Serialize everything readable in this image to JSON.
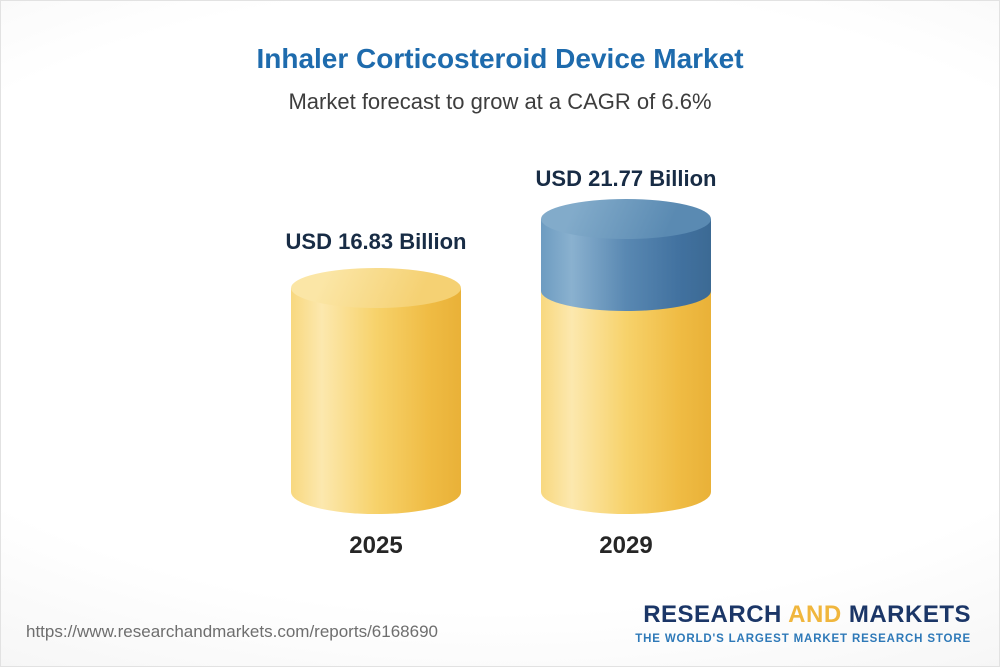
{
  "header": {
    "title": "Inhaler Corticosteroid Device Market",
    "subtitle": "Market forecast to grow at a CAGR of 6.6%"
  },
  "chart_data": {
    "type": "bar",
    "title": "Inhaler Corticosteroid Device Market",
    "subtitle": "Market forecast to grow at a CAGR of 6.6%",
    "unit": "USD Billion",
    "cagr": "6.6%",
    "categories": [
      "2025",
      "2029"
    ],
    "values": [
      16.83,
      21.77
    ],
    "bars": [
      {
        "year": "2025",
        "value": 16.83,
        "label": "USD 16.83 Billion",
        "color": "#f6c64e"
      },
      {
        "year": "2029",
        "value": 21.77,
        "label": "USD 21.77 Billion",
        "color": "#f6c64e",
        "growth_color": "#4d80ac"
      }
    ],
    "legend": false,
    "grid": false,
    "ylim": [
      0,
      21.77
    ]
  },
  "footer": {
    "url": "https://www.researchandmarkets.com/reports/6168690",
    "logo": {
      "word1": "RESEARCH",
      "word2": "AND",
      "word3": "MARKETS",
      "tagline": "THE WORLD'S LARGEST MARKET RESEARCH STORE"
    }
  },
  "colors": {
    "title_blue": "#1e6bad",
    "bar_yellow": "#f6c64e",
    "bar_blue": "#4d80ac",
    "logo_blue": "#1b3667",
    "logo_gold": "#f0b63d"
  }
}
